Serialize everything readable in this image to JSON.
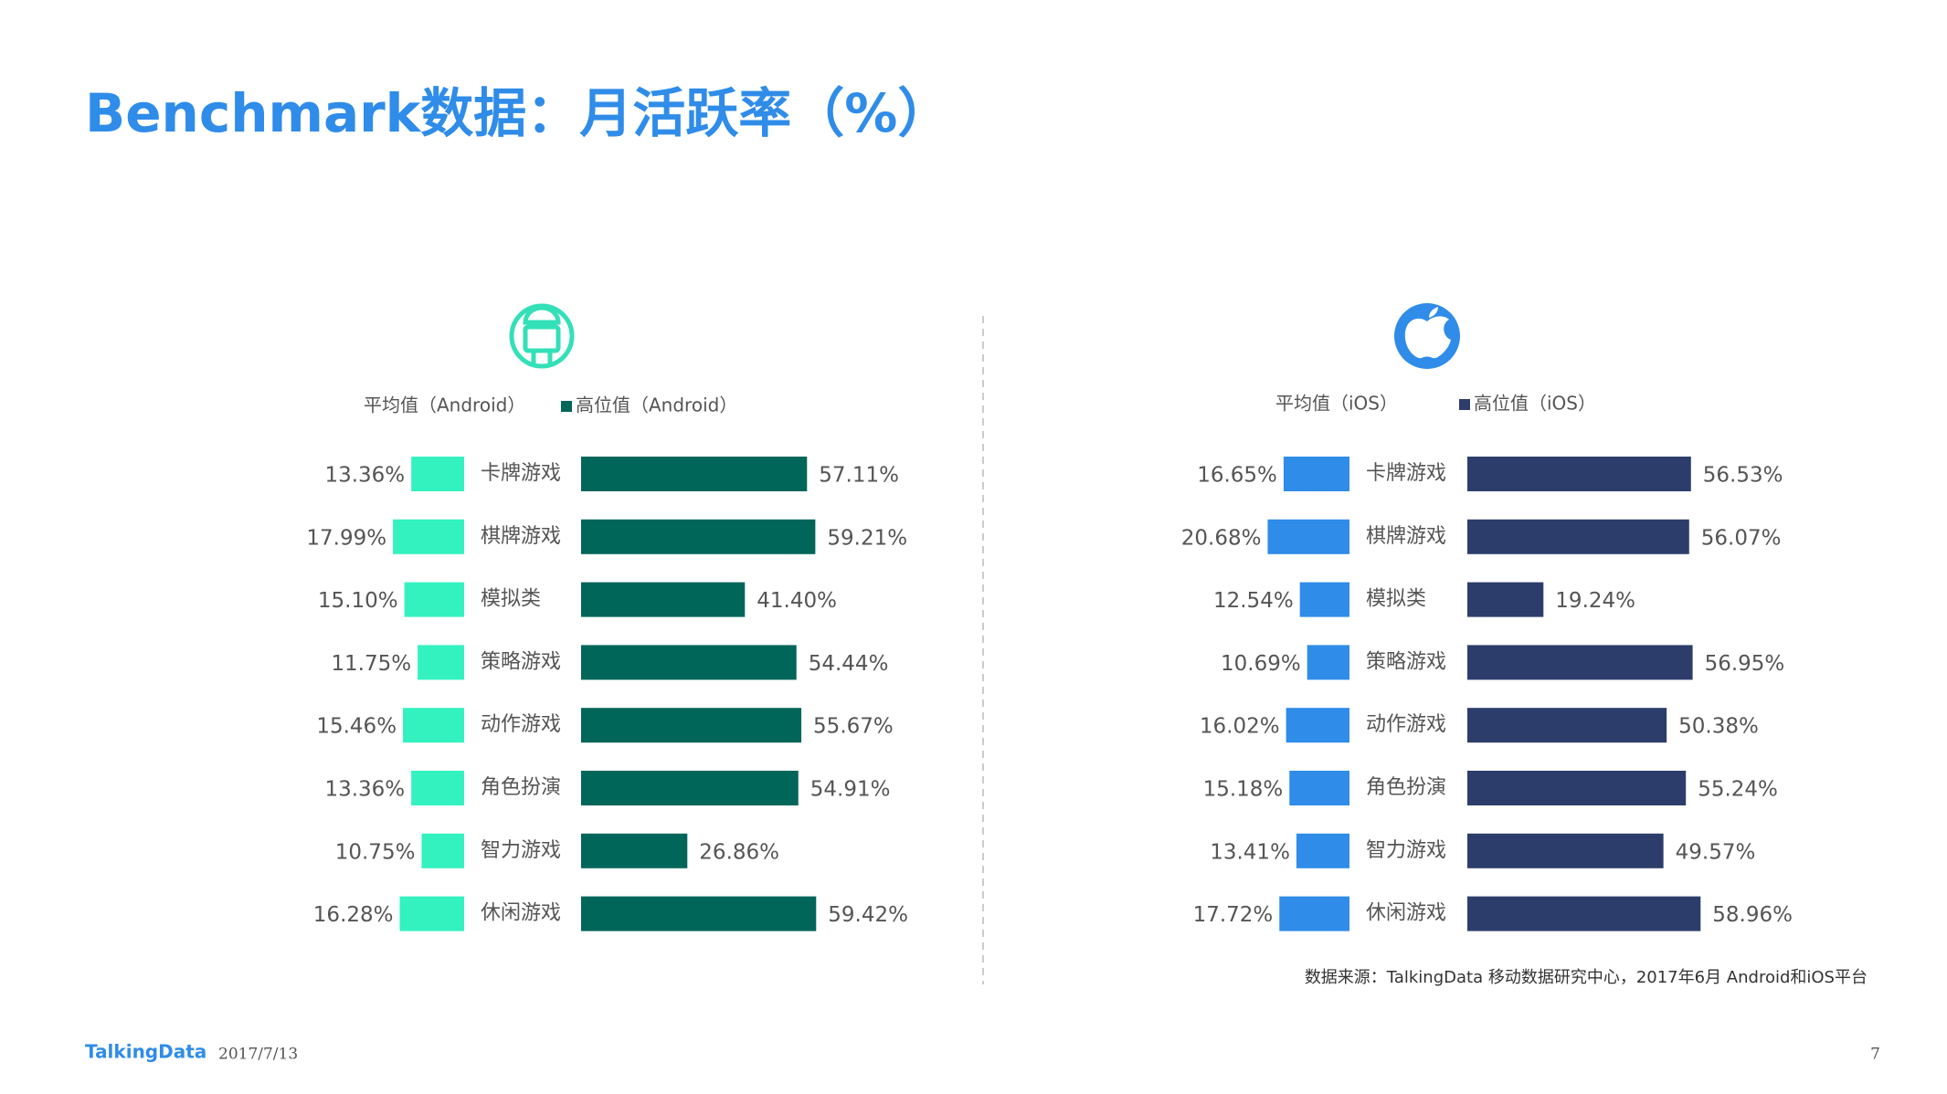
{
  "header": {
    "title": "Benchmark数据：月活跃率（%）"
  },
  "chart_data": [
    {
      "type": "butterfly-bar",
      "platform": "android",
      "categories": [
        "卡牌游戏",
        "棋牌游戏",
        "模拟类",
        "策略游戏",
        "动作游戏",
        "角色扮演",
        "智力游戏",
        "休闲游戏"
      ],
      "series": [
        {
          "name": "平均值（Android）",
          "color": "#33f2c0",
          "values": [
            13.36,
            17.99,
            15.1,
            11.75,
            15.46,
            13.36,
            10.75,
            16.28
          ],
          "value_labels": [
            "13.36%",
            "17.99%",
            "15.10%",
            "11.75%",
            "15.46%",
            "13.36%",
            "10.75%",
            "16.28%"
          ]
        },
        {
          "name": "高位值（Android）",
          "color": "#00665a",
          "values": [
            57.11,
            59.21,
            41.4,
            54.44,
            55.67,
            54.91,
            26.86,
            59.42
          ],
          "value_labels": [
            "57.11%",
            "59.21%",
            "41.40%",
            "54.44%",
            "55.67%",
            "54.91%",
            "26.86%",
            "59.42%"
          ]
        }
      ]
    },
    {
      "type": "butterfly-bar",
      "platform": "ios",
      "categories": [
        "卡牌游戏",
        "棋牌游戏",
        "模拟类",
        "策略游戏",
        "动作游戏",
        "角色扮演",
        "智力游戏",
        "休闲游戏"
      ],
      "series": [
        {
          "name": "平均值（iOS）",
          "color": "#2f8ce9",
          "values": [
            16.65,
            20.68,
            12.54,
            10.69,
            16.02,
            15.18,
            13.41,
            17.72
          ],
          "value_labels": [
            "16.65%",
            "20.68%",
            "12.54%",
            "10.69%",
            "16.02%",
            "15.18%",
            "13.41%",
            "17.72%"
          ]
        },
        {
          "name": "高位值（iOS）",
          "color": "#2d3d6b",
          "values": [
            56.53,
            56.07,
            19.24,
            56.95,
            50.38,
            55.24,
            49.57,
            58.96
          ],
          "value_labels": [
            "56.53%",
            "56.07%",
            "19.24%",
            "56.95%",
            "50.38%",
            "55.24%",
            "49.57%",
            "58.96%"
          ]
        }
      ]
    }
  ],
  "source": "数据来源：TalkingData 移动数据研究中心，2017年6月 Android和iOS平台",
  "footer": {
    "brand": "TalkingData",
    "date": "2017/7/13",
    "page": "7"
  }
}
